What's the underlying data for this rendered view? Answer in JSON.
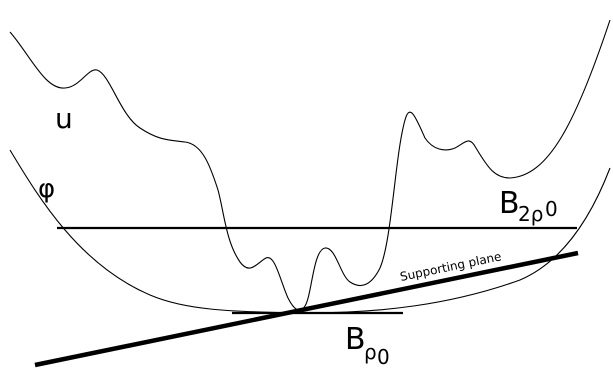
{
  "labels": {
    "u": "u",
    "phi": "φ",
    "b2rho0_base": "B",
    "b2rho0_sub": "2ρ",
    "b2rho0_subsub": "0",
    "brho0_base": "B",
    "brho0_sub": "ρ",
    "brho0_subsub": "0",
    "supporting_plane": "Supporting plane"
  },
  "colors": {
    "stroke": "#000000",
    "background": "#ffffff"
  }
}
